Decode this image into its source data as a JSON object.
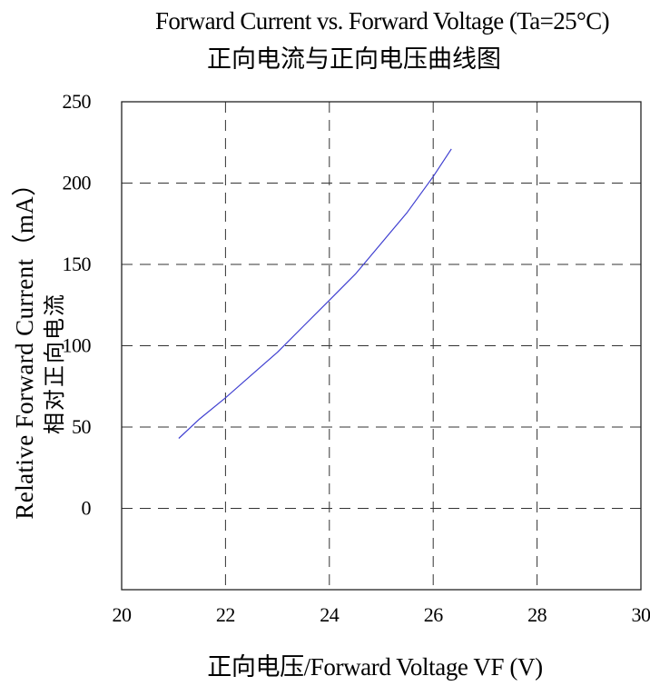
{
  "chart_data": {
    "type": "line",
    "title": "Forward Current vs. Forward Voltage (Ta=25°C)",
    "subtitle": "正向电流与正向电压曲线图",
    "xlabel": "正向电压/Forward Voltage  VF (V)",
    "ylabel": "Relative Forward Current（mA）",
    "ylabel_secondary": "相对正向电流",
    "xlim": [
      20,
      30
    ],
    "ylim": [
      -50,
      250
    ],
    "x_ticks": [
      "20",
      "22",
      "24",
      "26",
      "28",
      "30"
    ],
    "y_ticks": [
      "0",
      "50",
      "100",
      "150",
      "200",
      "250"
    ],
    "grid": true,
    "grid_style": "dashed",
    "series": [
      {
        "color": "#3f3fd0",
        "x": [
          21.1,
          21.5,
          22.0,
          22.5,
          23.0,
          23.5,
          24.0,
          24.5,
          25.0,
          25.5,
          26.0,
          26.35
        ],
        "y": [
          43,
          55,
          68,
          82,
          96,
          112,
          128,
          144,
          163,
          182,
          204,
          221
        ]
      }
    ]
  }
}
